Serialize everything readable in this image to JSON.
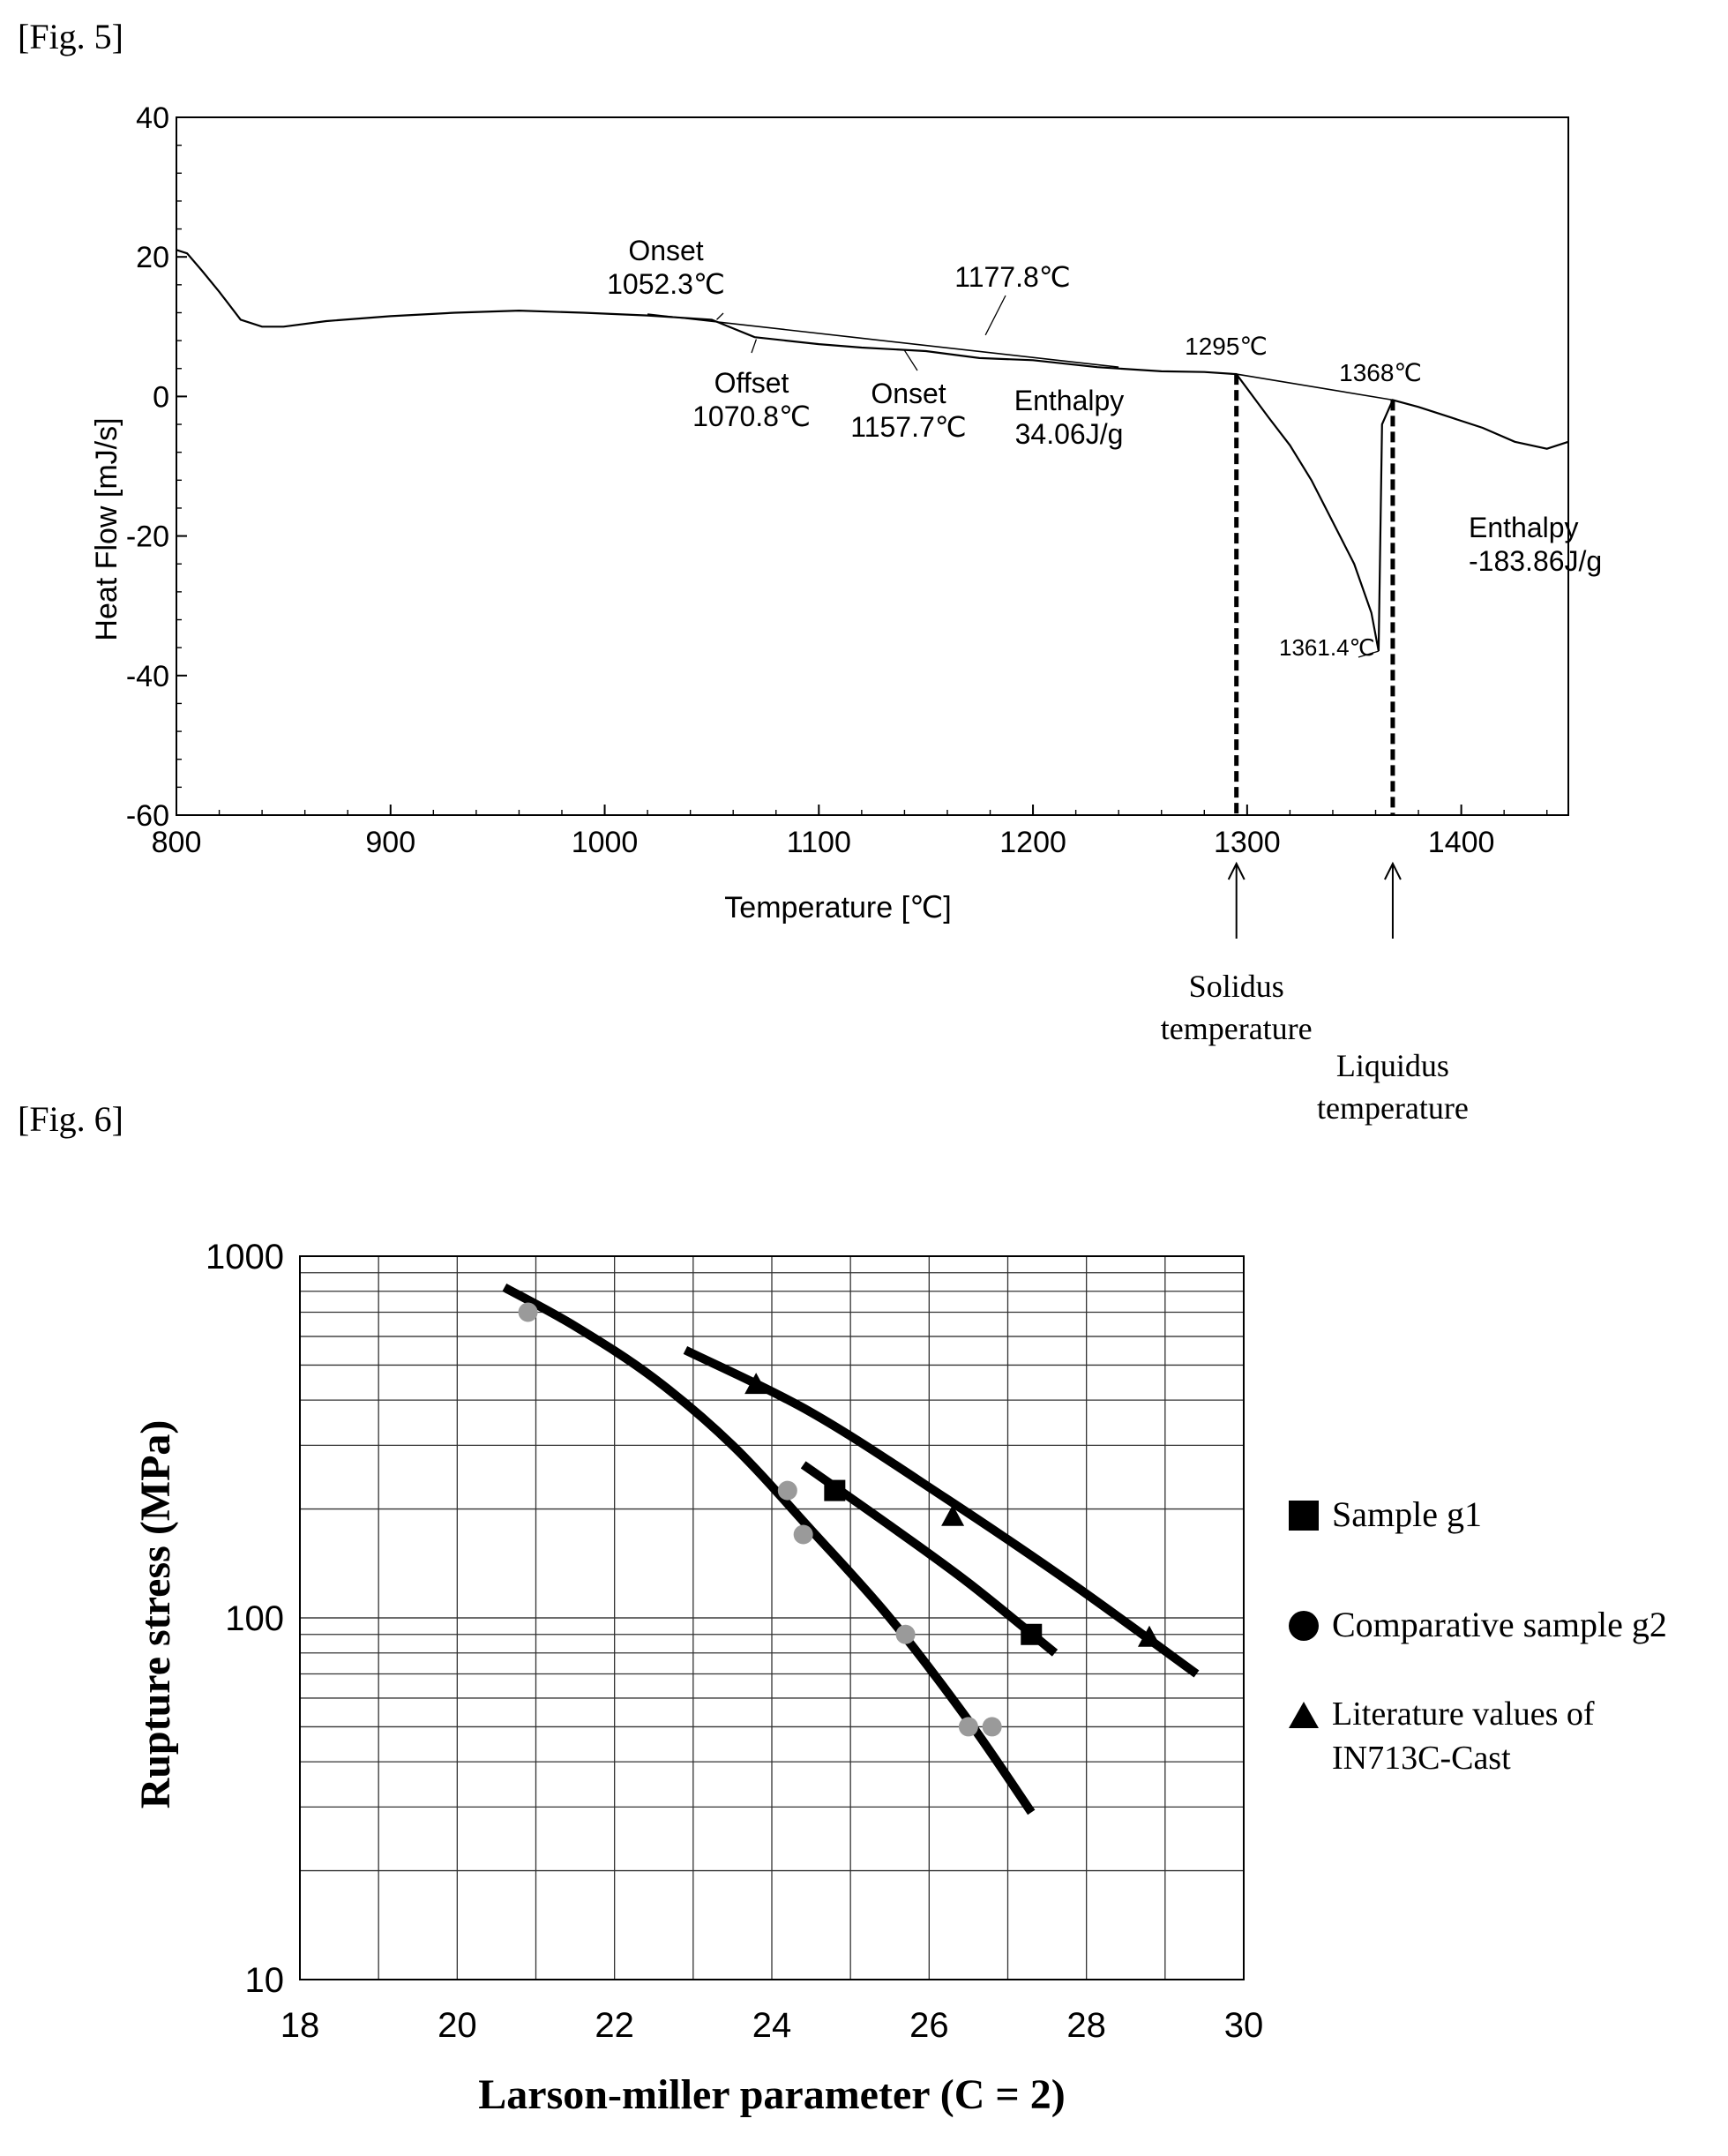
{
  "fig5": {
    "label": "[Fig. 5]",
    "chart_data": {
      "type": "line",
      "xlabel": "Temperature [℃]",
      "ylabel": "Heat Flow [mJ/s]",
      "xlim": [
        800,
        1450
      ],
      "ylim": [
        -60,
        40
      ],
      "xticks": [
        800,
        900,
        1000,
        1100,
        1200,
        1300,
        1400
      ],
      "yticks": [
        -60,
        -40,
        -20,
        0,
        20,
        40
      ],
      "grid": false,
      "series": [
        {
          "x": [
            800,
            805,
            812,
            820,
            830,
            840,
            850,
            870,
            900,
            930,
            960,
            990,
            1020,
            1050,
            1070,
            1100,
            1120,
            1150,
            1175,
            1200,
            1230,
            1260,
            1280,
            1295,
            1310,
            1320,
            1330,
            1340,
            1350,
            1358,
            1361.4,
            1363,
            1368,
            1380,
            1395,
            1410,
            1425,
            1440,
            1450
          ],
          "y": [
            21,
            20.5,
            18,
            15,
            11,
            10,
            10,
            10.8,
            11.5,
            12,
            12.3,
            12,
            11.6,
            11,
            8.5,
            7.5,
            7,
            6.5,
            5.5,
            5.2,
            4.2,
            3.6,
            3.5,
            3.2,
            -3,
            -7,
            -12,
            -18,
            -24,
            -31,
            -36.5,
            -4,
            -0.5,
            -1.5,
            -3,
            -4.5,
            -6.5,
            -7.5,
            -6.5
          ]
        }
      ],
      "annotations": [
        {
          "lines": [
            "Onset",
            "1052.3℃"
          ],
          "x": 1052.3,
          "y": 11
        },
        {
          "lines": [
            "Offset",
            "1070.8℃"
          ],
          "x": 1070.8,
          "y": 8.2
        },
        {
          "lines": [
            "1177.8℃"
          ],
          "x": 1177.8,
          "y": 8.8
        },
        {
          "lines": [
            "Onset",
            "1157.7℃"
          ],
          "x": 1157.7,
          "y": 6.4
        },
        {
          "lines": [
            "Enthalpy",
            "34.06J/g"
          ],
          "x": null,
          "y": null
        },
        {
          "lines": [
            "1295℃"
          ],
          "x": 1295,
          "y": 3.2
        },
        {
          "lines": [
            "1368℃"
          ],
          "x": 1368,
          "y": -0.5
        },
        {
          "lines": [
            "Enthalpy",
            "-183.86J/g"
          ],
          "x": null,
          "y": null
        },
        {
          "lines": [
            "1361.4℃"
          ],
          "x": 1361.4,
          "y": -36.5
        }
      ],
      "markers": [
        {
          "x": 1295,
          "lines": [
            "Solidus",
            "temperature"
          ]
        },
        {
          "x": 1368,
          "lines": [
            "Liquidus",
            "temperature"
          ]
        }
      ]
    }
  },
  "fig6": {
    "label": "[Fig. 6]",
    "chart_data": {
      "type": "scatter",
      "xlabel": "Larson-miller parameter (C = 2)",
      "ylabel": "Rupture stress (MPa)",
      "xlim": [
        18,
        30
      ],
      "ylim": [
        10,
        1000
      ],
      "yscale": "log",
      "xticks": [
        18,
        20,
        22,
        24,
        26,
        28,
        30
      ],
      "yticks": [
        10,
        100,
        1000
      ],
      "grid": true,
      "legend_position": "right",
      "series": [
        {
          "name": "Sample g1",
          "marker": "square",
          "points": [
            [
              24.8,
              225
            ],
            [
              27.3,
              90
            ]
          ],
          "fit": [
            [
              24.4,
              265
            ],
            [
              25.5,
              180
            ],
            [
              26.5,
              125
            ],
            [
              27.6,
              80
            ]
          ]
        },
        {
          "name": "Comparative sample g2",
          "marker": "circle",
          "points": [
            [
              20.9,
              700
            ],
            [
              24.2,
              225
            ],
            [
              24.4,
              170
            ],
            [
              25.7,
              90
            ],
            [
              26.5,
              50
            ],
            [
              26.8,
              50
            ]
          ],
          "fit": [
            [
              20.6,
              820
            ],
            [
              21.5,
              640
            ],
            [
              22.5,
              460
            ],
            [
              23.5,
              300
            ],
            [
              24.5,
              175
            ],
            [
              25.5,
              100
            ],
            [
              26.5,
              52
            ],
            [
              27.3,
              29
            ]
          ]
        },
        {
          "name": "Literature values of IN713C-Cast",
          "marker": "triangle",
          "points": [
            [
              23.8,
              440
            ],
            [
              26.3,
              190
            ],
            [
              28.8,
              88
            ]
          ],
          "fit": [
            [
              22.9,
              550
            ],
            [
              24.5,
              370
            ],
            [
              26.2,
              215
            ],
            [
              27.8,
              125
            ],
            [
              29.4,
              70
            ]
          ]
        }
      ]
    }
  }
}
